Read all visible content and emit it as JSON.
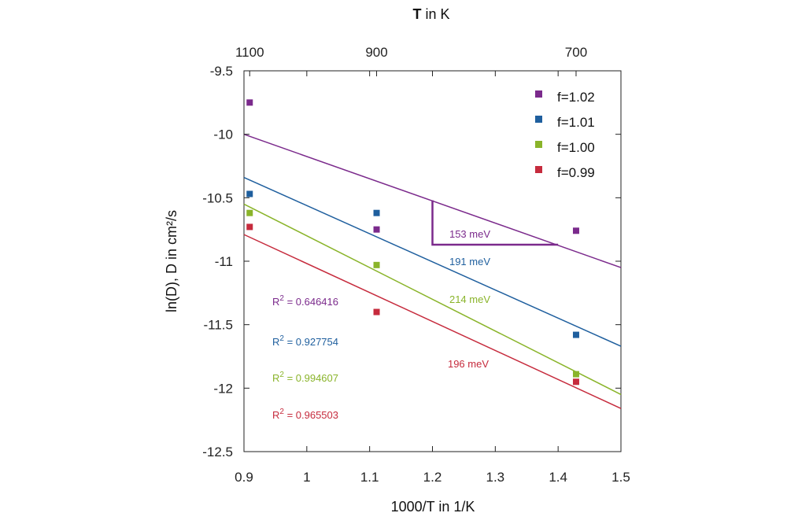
{
  "chart_data": {
    "type": "scatter",
    "title": "",
    "xlabel": "1000/T in 1/K",
    "ylabel": "ln(D), D in cm²/s",
    "top_label_bold": "T",
    "top_label_rest": " in K",
    "xlim": [
      0.9,
      1.5
    ],
    "ylim": [
      -12.5,
      -9.5
    ],
    "x_ticks": [
      0.9,
      1.0,
      1.1,
      1.2,
      1.3,
      1.4,
      1.5
    ],
    "x_tick_labels": [
      "0.9",
      "1",
      "1.1",
      "1.2",
      "1.3",
      "1.4",
      "1.5"
    ],
    "y_ticks": [
      -9.5,
      -10,
      -10.5,
      -11,
      -11.5,
      -12,
      -12.5
    ],
    "y_tick_labels": [
      "-9.5",
      "-10",
      "-10.5",
      "-11",
      "-11.5",
      "-12",
      "-12.5"
    ],
    "top_ticks": [
      {
        "x": 0.90909,
        "label": "1100"
      },
      {
        "x": 1.11111,
        "label": "900"
      },
      {
        "x": 1.42857,
        "label": "700"
      }
    ],
    "legend_position": "top-right",
    "series": [
      {
        "name": "f=1.02",
        "color": "#7b2a8c",
        "x": [
          0.90909,
          1.11111,
          1.42857
        ],
        "y": [
          -9.75,
          -10.75,
          -10.76
        ],
        "fit": [
          [
            0.9,
            -10.0
          ],
          [
            1.5,
            -11.05
          ]
        ],
        "slope_label": "153 meV",
        "r2_label": "0.646416"
      },
      {
        "name": "f=1.01",
        "color": "#1f5f9e",
        "x": [
          0.90909,
          1.11111,
          1.42857
        ],
        "y": [
          -10.47,
          -10.62,
          -11.58
        ],
        "fit": [
          [
            0.9,
            -10.34
          ],
          [
            1.5,
            -11.67
          ]
        ],
        "slope_label": "191 meV",
        "r2_label": "0.927754"
      },
      {
        "name": "f=1.00",
        "color": "#8ab42a",
        "x": [
          0.90909,
          1.11111,
          1.42857
        ],
        "y": [
          -10.62,
          -11.03,
          -11.89
        ],
        "fit": [
          [
            0.9,
            -10.55
          ],
          [
            1.5,
            -12.05
          ]
        ],
        "slope_label": "214 meV",
        "r2_label": "0.994607"
      },
      {
        "name": "f=0.99",
        "color": "#c62b3d",
        "x": [
          0.90909,
          1.11111,
          1.42857
        ],
        "y": [
          -10.73,
          -11.4,
          -11.95
        ],
        "fit": [
          [
            0.9,
            -10.79
          ],
          [
            1.5,
            -12.16
          ]
        ],
        "slope_label": "196 meV",
        "r2_label": "0.965503"
      }
    ],
    "slope_triangle": {
      "x1": 1.2,
      "x2": 1.4,
      "y_top": -10.52,
      "y_bottom": -10.87,
      "color": "#7b2a8c"
    },
    "r2_prefix": "R",
    "r2_sup": "2",
    "r2_eq": " = "
  }
}
